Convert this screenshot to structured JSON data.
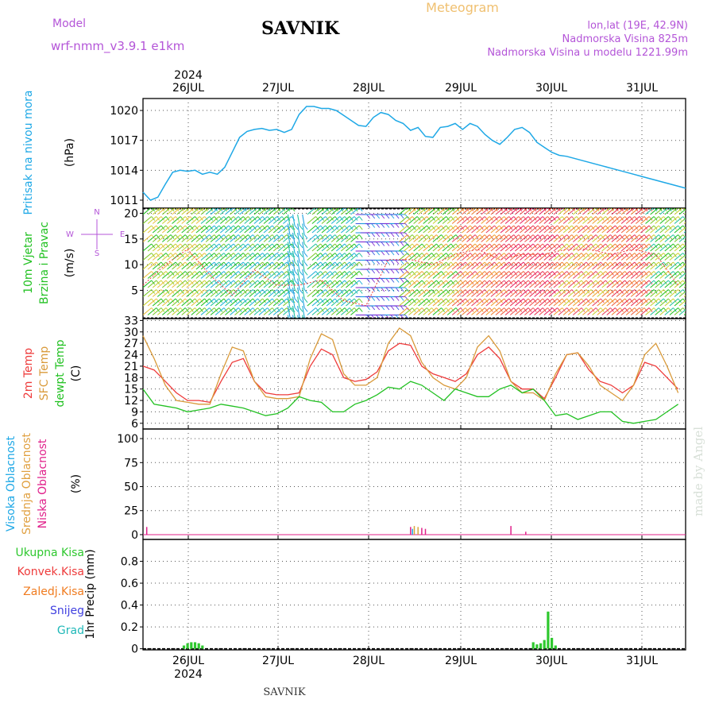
{
  "header": {
    "model_label": "Model",
    "model_name": "wrf-nmm_v3.9.1  e1km",
    "station": "SAVNIK",
    "product": "Meteogram",
    "coords": "lon,lat (19E, 42.9N)",
    "elevation": "Nadmorska Visina 825m",
    "model_elevation": "Nadmorska Visina u modelu 1221.99m",
    "footer_station": "SAVNIK",
    "watermark": "made by Angel",
    "year_top": "2024",
    "year_bottom": "2024"
  },
  "colors": {
    "pressure": "#1ea8e6",
    "temp2m": "#ee3b3b",
    "sfc_temp": "#d99a3a",
    "dewpt": "#22c122",
    "precip": "#2ec82e",
    "violet": "#b455d8",
    "orange": "#f0b048"
  },
  "chart_data": [
    {
      "type": "line",
      "title": "",
      "ylabel": "Pritisak na nivou mora",
      "unit": "(hPa)",
      "x_categories": [
        "26JUL",
        "27JUL",
        "28JUL",
        "29JUL",
        "30JUL",
        "31JUL"
      ],
      "ylim": [
        1010.2,
        1021.2
      ],
      "yticks": [
        1011,
        1014,
        1017,
        1020
      ],
      "grid": true,
      "series": [
        {
          "color": "#1ea8e6",
          "x_hours": [
            0,
            2,
            4,
            6,
            8,
            10,
            12,
            14,
            16,
            18,
            20,
            22,
            24,
            26,
            28,
            30,
            32,
            34,
            36,
            38,
            40,
            42,
            44,
            46,
            48,
            50,
            52,
            54,
            56,
            58,
            60,
            62,
            64,
            66,
            68,
            70,
            72,
            74,
            76,
            78,
            80,
            82,
            84,
            86,
            88,
            90,
            92,
            94,
            96,
            98,
            100,
            102,
            104,
            106,
            108,
            110,
            112,
            114,
            116,
            118,
            120,
            122,
            124,
            126,
            128,
            130,
            132,
            134,
            136,
            138,
            140,
            142,
            144,
            146
          ],
          "values": [
            1011.8,
            1011.0,
            1011.3,
            1012.6,
            1013.8,
            1014.0,
            1013.9,
            1014.0,
            1013.6,
            1013.8,
            1013.6,
            1014.3,
            1015.8,
            1017.3,
            1017.9,
            1018.1,
            1018.2,
            1018.0,
            1018.1,
            1017.8,
            1018.1,
            1019.6,
            1020.4,
            1020.4,
            1020.2,
            1020.2,
            1020.0,
            1019.5,
            1019.0,
            1018.5,
            1018.4,
            1019.3,
            1019.8,
            1019.6,
            1019.0,
            1018.7,
            1018.0,
            1018.3,
            1017.4,
            1017.3,
            1018.3,
            1018.4,
            1018.7,
            1018.1,
            1018.7,
            1018.4,
            1017.6,
            1017.0,
            1016.6,
            1017.3,
            1018.1,
            1018.3,
            1017.8,
            1016.8,
            1016.3,
            1015.8,
            1015.5,
            1015.4,
            1015.2,
            1015.0,
            1014.8,
            1014.6,
            1014.4,
            1014.2,
            1014.0,
            1013.8,
            1013.6,
            1013.4,
            1013.2,
            1013.0,
            1012.8,
            1012.6,
            1012.4,
            1012.2
          ]
        }
      ]
    },
    {
      "type": "line",
      "title": "",
      "ylabel": "10m Vjetar Brzina i Pravac",
      "unit": "(m/s)",
      "ylim": [
        -0.5,
        21
      ],
      "yticks": [
        5,
        10,
        15,
        20
      ],
      "compass": [
        "N",
        "W",
        "E",
        "S"
      ],
      "grid": true,
      "series": [
        {
          "color": "#ee3b3b",
          "x_hours": [
            0,
            6,
            12,
            18,
            24,
            30,
            36,
            42,
            48,
            54,
            60,
            66,
            72,
            78,
            84,
            90,
            96,
            102,
            108,
            114,
            120,
            126,
            132,
            138,
            144
          ],
          "values": [
            6,
            10,
            13,
            8,
            4,
            9,
            6,
            6,
            7,
            3,
            2,
            11,
            11,
            10,
            12,
            13,
            11,
            12,
            12,
            13,
            13,
            12,
            13,
            12,
            6
          ]
        }
      ]
    },
    {
      "type": "line",
      "title": "",
      "ylabels": [
        "2m Temp",
        "SFC Temp",
        "dewpt Temp"
      ],
      "unit": "(C)",
      "ylim": [
        4.5,
        33.5
      ],
      "yticks": [
        6,
        9,
        12,
        15,
        18,
        21,
        24,
        27,
        30,
        33
      ],
      "grid": true,
      "series": [
        {
          "name": "2m Temp",
          "color": "#ee3b3b",
          "x_hours": [
            0,
            3,
            6,
            9,
            12,
            15,
            18,
            21,
            24,
            27,
            30,
            33,
            36,
            39,
            42,
            45,
            48,
            51,
            54,
            57,
            60,
            63,
            66,
            69,
            72,
            75,
            78,
            81,
            84,
            87,
            90,
            93,
            96,
            99,
            102,
            105,
            108,
            111,
            114,
            117,
            120,
            123,
            126,
            129,
            132,
            135,
            138,
            141,
            144
          ],
          "values": [
            21,
            20,
            17,
            14,
            12,
            12,
            11.5,
            17,
            22,
            23,
            17,
            14,
            13.5,
            13.5,
            14,
            21,
            25.5,
            24,
            18,
            17,
            17.5,
            19.5,
            25,
            27,
            26.5,
            21,
            19,
            18,
            17,
            19,
            24,
            26,
            23,
            17,
            15,
            15,
            12.5,
            18,
            24,
            24.5,
            20,
            17,
            16,
            14,
            16,
            22,
            21,
            18,
            15
          ]
        },
        {
          "name": "SFC Temp",
          "color": "#d99a3a",
          "x_hours": [
            0,
            3,
            6,
            9,
            12,
            15,
            18,
            21,
            24,
            27,
            30,
            33,
            36,
            39,
            42,
            45,
            48,
            51,
            54,
            57,
            60,
            63,
            66,
            69,
            72,
            75,
            78,
            81,
            84,
            87,
            90,
            93,
            96,
            99,
            102,
            105,
            108,
            111,
            114,
            117,
            120,
            123,
            126,
            129,
            132,
            135,
            138,
            141,
            144
          ],
          "values": [
            29,
            23,
            16,
            12,
            11.5,
            11,
            11,
            19,
            26,
            25,
            17,
            13,
            12.5,
            12.5,
            13,
            23,
            29.5,
            28,
            19,
            16,
            16,
            18,
            27,
            31,
            29,
            22,
            18,
            16,
            15,
            18,
            26,
            29,
            25,
            17,
            14,
            14,
            12,
            19,
            24,
            24.5,
            21,
            16,
            14,
            12,
            16,
            24,
            27,
            21,
            14
          ]
        },
        {
          "name": "dewpt Temp",
          "color": "#22c122",
          "x_hours": [
            0,
            3,
            6,
            9,
            12,
            15,
            18,
            21,
            24,
            27,
            30,
            33,
            36,
            39,
            42,
            45,
            48,
            51,
            54,
            57,
            60,
            63,
            66,
            69,
            72,
            75,
            78,
            81,
            84,
            87,
            90,
            93,
            96,
            99,
            102,
            105,
            108,
            111,
            114,
            117,
            120,
            123,
            126,
            129,
            132,
            135,
            138,
            141,
            144
          ],
          "values": [
            15,
            11,
            10.5,
            10,
            9,
            9.5,
            10,
            11,
            10.5,
            10,
            9,
            8,
            8.5,
            10,
            13,
            12,
            11.5,
            9,
            9,
            11,
            12,
            13.5,
            15.5,
            15,
            17,
            16,
            14,
            12,
            15,
            14,
            13,
            13,
            15,
            16,
            14,
            15,
            12,
            8,
            8.5,
            7,
            8,
            9,
            9,
            6.5,
            6,
            6.5,
            7,
            9,
            11
          ]
        }
      ]
    },
    {
      "type": "bar",
      "title": "",
      "ylabels": [
        "Visoka Oblacnost",
        "Srednja Oblacnost",
        "Niska Oblacnost"
      ],
      "unit": "(%)",
      "ylim": [
        -5,
        110
      ],
      "yticks": [
        0,
        25,
        50,
        75,
        100
      ],
      "grid": true,
      "series": [
        {
          "name": "Niska Oblacnost",
          "color": "#e0208a",
          "x_hours": [
            1,
            72,
            75,
            76,
            99,
            103
          ],
          "values": [
            8,
            8,
            7,
            6,
            9,
            3
          ]
        },
        {
          "name": "Srednja Oblacnost",
          "color": "#d9a53a",
          "x_hours": [
            73,
            74
          ],
          "values": [
            9,
            8
          ]
        },
        {
          "name": "Visoka Oblacnost",
          "color": "#1ea8e6",
          "x_hours": [
            72.5
          ],
          "values": [
            6
          ]
        }
      ]
    },
    {
      "type": "bar",
      "title": "",
      "ylabels": [
        "Ukupna Kisa",
        "Konvek.Kisa",
        "Zaledj.Kisa",
        "Snijeg",
        "Grad"
      ],
      "legend_colors": [
        "#2ec82e",
        "#ee3b3b",
        "#f07c20",
        "#4040e0",
        "#20b8b8"
      ],
      "unit": "1hr Precip (mm)",
      "ylim": [
        -0.01,
        1.0
      ],
      "yticks": [
        0,
        0.2,
        0.4,
        0.6,
        0.8
      ],
      "grid": true,
      "series": [
        {
          "name": "Ukupna Kisa",
          "color": "#2ec82e",
          "x_hours": [
            11,
            12,
            13,
            14,
            15,
            16,
            105,
            106,
            107,
            108,
            109,
            110,
            111
          ],
          "values": [
            0.03,
            0.05,
            0.06,
            0.06,
            0.05,
            0.03,
            0.06,
            0.04,
            0.05,
            0.08,
            0.34,
            0.1,
            0.03
          ]
        }
      ]
    }
  ]
}
